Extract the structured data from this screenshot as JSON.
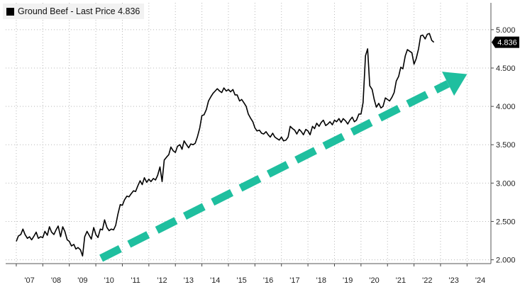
{
  "legend": {
    "series_label": "Ground Beef",
    "separator": " - ",
    "last_price_label": "Last Price",
    "last_price_value": "4.836"
  },
  "chart_data": {
    "type": "line",
    "title": "",
    "xlabel": "",
    "ylabel": "",
    "x_tick_labels": [
      "'07",
      "'08",
      "'09",
      "'10",
      "'11",
      "'12",
      "'13",
      "'14",
      "'15",
      "'16",
      "'17",
      "'18",
      "'19",
      "'20",
      "'21",
      "'22",
      "'23",
      "'24"
    ],
    "y_tick_labels": [
      "2.000",
      "2.500",
      "3.000",
      "3.500",
      "4.000",
      "4.500",
      "5.000"
    ],
    "xlim": [
      2006.6,
      2024.9
    ],
    "ylim": [
      1.95,
      5.35
    ],
    "y_axis_side": "right",
    "grid": "dotted vertical and horizontal",
    "last_value": 4.836,
    "series": [
      {
        "name": "Ground Beef",
        "color": "#000000",
        "x": [
          2007.0,
          2007.08,
          2007.17,
          2007.25,
          2007.33,
          2007.42,
          2007.5,
          2007.58,
          2007.67,
          2007.75,
          2007.83,
          2007.92,
          2008.0,
          2008.08,
          2008.17,
          2008.25,
          2008.33,
          2008.42,
          2008.5,
          2008.58,
          2008.67,
          2008.75,
          2008.83,
          2008.92,
          2009.0,
          2009.08,
          2009.17,
          2009.25,
          2009.33,
          2009.42,
          2009.5,
          2009.58,
          2009.67,
          2009.75,
          2009.83,
          2009.92,
          2010.0,
          2010.08,
          2010.17,
          2010.25,
          2010.33,
          2010.42,
          2010.5,
          2010.58,
          2010.67,
          2010.75,
          2010.83,
          2010.92,
          2011.0,
          2011.08,
          2011.17,
          2011.25,
          2011.33,
          2011.42,
          2011.5,
          2011.58,
          2011.67,
          2011.75,
          2011.83,
          2011.92,
          2012.0,
          2012.08,
          2012.17,
          2012.25,
          2012.33,
          2012.42,
          2012.5,
          2012.58,
          2012.67,
          2012.75,
          2012.83,
          2012.92,
          2013.0,
          2013.08,
          2013.17,
          2013.25,
          2013.33,
          2013.42,
          2013.5,
          2013.58,
          2013.67,
          2013.75,
          2013.83,
          2013.92,
          2014.0,
          2014.08,
          2014.17,
          2014.25,
          2014.33,
          2014.42,
          2014.5,
          2014.58,
          2014.67,
          2014.75,
          2014.83,
          2014.92,
          2015.0,
          2015.08,
          2015.17,
          2015.25,
          2015.33,
          2015.42,
          2015.5,
          2015.58,
          2015.67,
          2015.75,
          2015.83,
          2015.92,
          2016.0,
          2016.08,
          2016.17,
          2016.25,
          2016.33,
          2016.42,
          2016.5,
          2016.58,
          2016.67,
          2016.75,
          2016.83,
          2016.92,
          2017.0,
          2017.08,
          2017.17,
          2017.25,
          2017.33,
          2017.42,
          2017.5,
          2017.58,
          2017.67,
          2017.75,
          2017.83,
          2017.92,
          2018.0,
          2018.08,
          2018.17,
          2018.25,
          2018.33,
          2018.42,
          2018.5,
          2018.58,
          2018.67,
          2018.75,
          2018.83,
          2018.92,
          2019.0,
          2019.08,
          2019.17,
          2019.25,
          2019.33,
          2019.42,
          2019.5,
          2019.58,
          2019.67,
          2019.75,
          2019.83,
          2019.92,
          2020.0,
          2020.08,
          2020.17,
          2020.25,
          2020.33,
          2020.42,
          2020.5,
          2020.58,
          2020.67,
          2020.75,
          2020.83,
          2020.92,
          2021.0,
          2021.08,
          2021.17,
          2021.25,
          2021.33,
          2021.42,
          2021.5,
          2021.58,
          2021.67,
          2021.75,
          2021.83,
          2021.92,
          2022.0,
          2022.08,
          2022.17,
          2022.25,
          2022.33,
          2022.42,
          2022.5,
          2022.58,
          2022.67,
          2022.75
        ],
        "y": [
          2.24,
          2.31,
          2.33,
          2.4,
          2.33,
          2.28,
          2.3,
          2.26,
          2.31,
          2.36,
          2.28,
          2.3,
          2.29,
          2.37,
          2.32,
          2.43,
          2.36,
          2.33,
          2.39,
          2.44,
          2.3,
          2.43,
          2.37,
          2.26,
          2.24,
          2.18,
          2.2,
          2.14,
          2.16,
          2.13,
          2.05,
          2.3,
          2.37,
          2.32,
          2.27,
          2.42,
          2.33,
          2.29,
          2.4,
          2.39,
          2.52,
          2.42,
          2.38,
          2.4,
          2.39,
          2.45,
          2.59,
          2.72,
          2.71,
          2.78,
          2.83,
          2.82,
          2.86,
          2.9,
          2.89,
          2.96,
          3.03,
          2.98,
          3.07,
          3.01,
          3.05,
          3.02,
          3.06,
          3.04,
          3.1,
          3.21,
          3.02,
          3.3,
          3.34,
          3.37,
          3.47,
          3.42,
          3.4,
          3.48,
          3.5,
          3.44,
          3.55,
          3.5,
          3.46,
          3.51,
          3.5,
          3.52,
          3.6,
          3.72,
          3.88,
          3.89,
          3.96,
          4.07,
          4.12,
          4.17,
          4.2,
          4.23,
          4.2,
          4.18,
          4.24,
          4.2,
          4.22,
          4.19,
          4.22,
          4.15,
          4.15,
          4.07,
          4.09,
          4.05,
          4.0,
          3.9,
          3.85,
          3.8,
          3.72,
          3.68,
          3.69,
          3.65,
          3.64,
          3.67,
          3.63,
          3.6,
          3.65,
          3.6,
          3.58,
          3.56,
          3.6,
          3.55,
          3.56,
          3.6,
          3.74,
          3.71,
          3.69,
          3.64,
          3.7,
          3.67,
          3.63,
          3.7,
          3.68,
          3.63,
          3.74,
          3.71,
          3.78,
          3.74,
          3.79,
          3.82,
          3.75,
          3.77,
          3.8,
          3.76,
          3.82,
          3.8,
          3.84,
          3.79,
          3.84,
          3.81,
          3.77,
          3.82,
          3.86,
          3.8,
          3.82,
          3.9,
          3.9,
          4.05,
          4.66,
          4.75,
          4.27,
          4.22,
          4.09,
          3.99,
          4.04,
          3.98,
          4.0,
          4.11,
          4.09,
          4.07,
          4.12,
          4.18,
          4.33,
          4.39,
          4.51,
          4.49,
          4.66,
          4.74,
          4.72,
          4.7,
          4.55,
          4.62,
          4.75,
          4.92,
          4.93,
          4.88,
          4.94,
          4.95,
          4.86,
          4.836
        ]
      }
    ],
    "annotation": {
      "type": "dashed-arrow",
      "color": "#1fbf9f",
      "from": {
        "x": 2010.2,
        "y": 2.02
      },
      "to": {
        "x": 2024.0,
        "y": 4.42
      }
    }
  },
  "colors": {
    "line": "#000000",
    "grid": "#b8b8b8",
    "arrow": "#1fbf9f",
    "last_tag_bg": "#000000",
    "legend_bg": "#f2f2f2"
  }
}
